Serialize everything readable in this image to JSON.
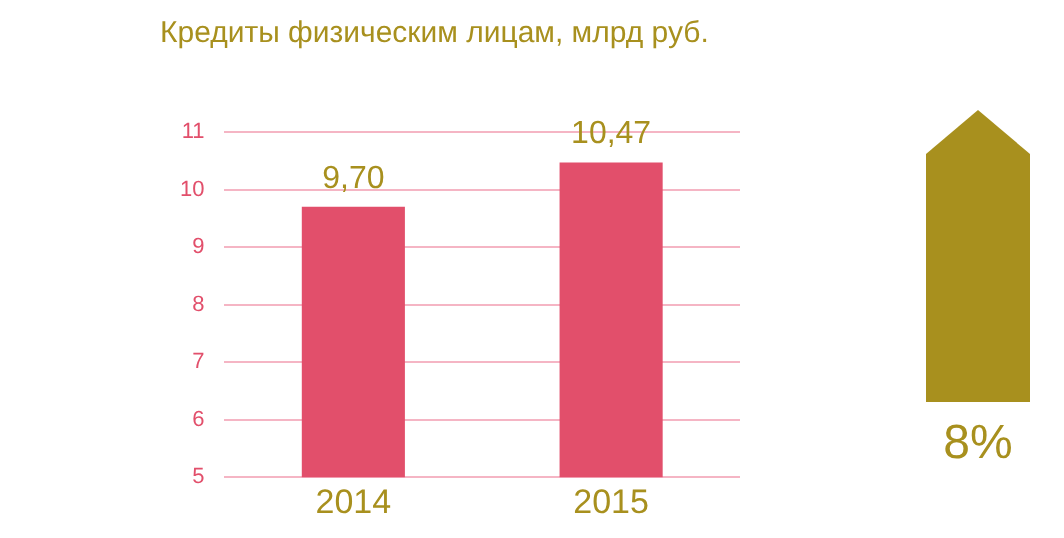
{
  "chart_data": {
    "type": "bar",
    "title": "Кредиты физическим лицам, млрд руб.",
    "categories": [
      "2014",
      "2015"
    ],
    "values": [
      9.7,
      10.47
    ],
    "value_labels": [
      "9,70",
      "10,47"
    ],
    "color": "#e24f6b",
    "ylim": [
      5,
      11
    ],
    "yticks": [
      5,
      6,
      7,
      8,
      9,
      10,
      11
    ],
    "grid": "y",
    "legend": false,
    "annotations": [
      "8%"
    ]
  }
}
